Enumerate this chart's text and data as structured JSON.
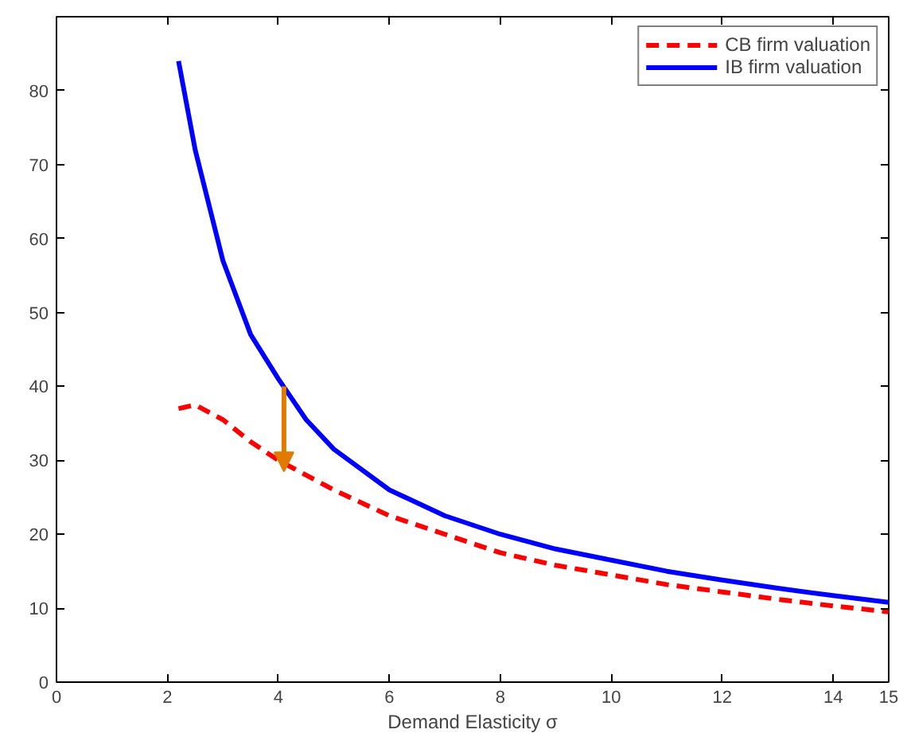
{
  "chart_data": {
    "type": "line",
    "xlabel": "Demand Elasticity σ",
    "xlim": [
      0,
      15
    ],
    "ylim": [
      0,
      90
    ],
    "xticks": [
      0,
      2,
      4,
      6,
      8,
      10,
      12,
      14,
      15
    ],
    "yticks": [
      0,
      10,
      20,
      30,
      40,
      50,
      60,
      70,
      80
    ],
    "grid": false,
    "legend": "top right",
    "marker": "none",
    "series": [
      {
        "name": "CB firm valuation",
        "color": "#ff0000",
        "line_style": "dashed",
        "x": [
          2.2,
          2.5,
          3,
          3.5,
          4,
          5,
          6,
          7,
          8,
          9,
          10,
          11,
          12,
          13,
          14,
          15
        ],
        "values": [
          37,
          37.5,
          35.5,
          32.5,
          30,
          26,
          22.5,
          20,
          17.5,
          15.8,
          14.5,
          13.2,
          12.2,
          11.2,
          10.3,
          9.5
        ]
      },
      {
        "name": "IB firm valuation",
        "color": "#0000ff",
        "line_style": "solid",
        "x": [
          2.2,
          2.5,
          3,
          3.5,
          4,
          4.5,
          5,
          6,
          7,
          8,
          9,
          10,
          11,
          12,
          13,
          14,
          15
        ],
        "values": [
          84,
          72,
          57,
          47,
          41,
          35.5,
          31.5,
          26,
          22.5,
          20,
          18,
          16.5,
          15,
          13.8,
          12.7,
          11.7,
          10.8
        ]
      }
    ]
  }
}
